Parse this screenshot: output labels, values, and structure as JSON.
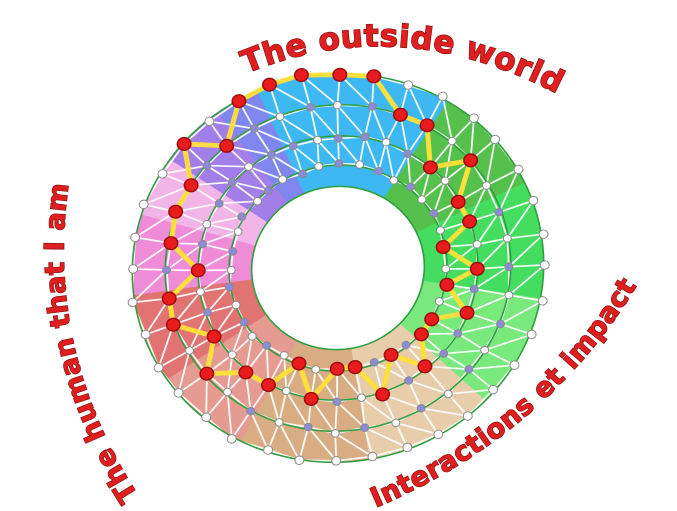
{
  "page": {
    "background": "#ffffff"
  },
  "diagram": {
    "labels": [
      {
        "id": "outside-world",
        "text": "The outside world"
      },
      {
        "id": "interactions-impact",
        "text": "Interactions et impact"
      },
      {
        "id": "human-that-i-am",
        "text": "The human that I am"
      }
    ],
    "label_color": "#df1f1f",
    "label_outline": "#8d1010",
    "sectors": [
      {
        "name": "sky-blue",
        "from": -14,
        "to": 42,
        "color": "#3db8f2"
      },
      {
        "name": "green-medium",
        "from": 42,
        "to": 75,
        "color": "#56c04c"
      },
      {
        "name": "green-bright",
        "from": 75,
        "to": 110,
        "color": "#45dd60"
      },
      {
        "name": "green-light",
        "from": 110,
        "to": 144,
        "color": "#79e87d"
      },
      {
        "name": "tan-light",
        "from": 144,
        "to": 181,
        "color": "#e7cdaa"
      },
      {
        "name": "tan-medium",
        "from": 181,
        "to": 218,
        "color": "#d9ad84"
      },
      {
        "name": "salmon",
        "from": 218,
        "to": 246,
        "color": "#e59b91"
      },
      {
        "name": "red-soft",
        "from": 246,
        "to": 273,
        "color": "#e17373"
      },
      {
        "name": "pink",
        "from": 273,
        "to": 297,
        "color": "#ee8cd8"
      },
      {
        "name": "pink-light",
        "from": 297,
        "to": 315,
        "color": "#f2b5e7"
      },
      {
        "name": "purple",
        "from": 315,
        "to": 334,
        "color": "#a17ee8"
      },
      {
        "name": "violet-blue",
        "from": 334,
        "to": 346,
        "color": "#7f87ef"
      }
    ],
    "rings": {
      "fractions": [
        1.0,
        0.84,
        0.68,
        0.53
      ],
      "hole": 0.42,
      "circles": [
        1.0,
        0.84,
        0.68,
        0.53,
        0.42
      ],
      "line_color": "#2e9e3f"
    },
    "mesh_color": "#ffffff",
    "path_color": "#ffdf38",
    "spokes": 36,
    "selection": [
      0,
      0,
      0,
      1,
      1,
      2,
      1,
      2,
      2,
      3,
      2,
      3,
      2,
      3,
      3,
      2,
      3,
      2,
      3,
      3,
      2,
      3,
      2,
      2,
      1,
      2,
      1,
      1,
      2,
      1,
      1,
      1,
      0,
      1,
      0,
      0
    ],
    "nodes": {
      "white": "#ffffff",
      "purple": "#8b8bd8",
      "red": "#e81c1c",
      "outline": "#8a8a8a",
      "red_outline": "#9e0b0b"
    }
  }
}
